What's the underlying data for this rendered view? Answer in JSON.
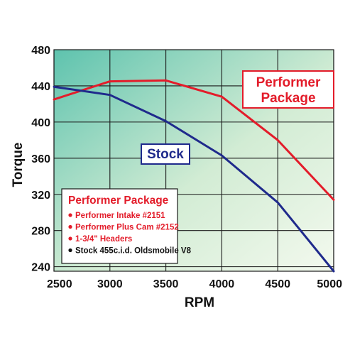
{
  "chart_data": {
    "type": "line",
    "title": "",
    "xlabel": "RPM",
    "ylabel": "Torque",
    "x": [
      2500,
      3000,
      3500,
      4000,
      4500,
      5000
    ],
    "xlim": [
      2500,
      5000
    ],
    "ylim": [
      235,
      480
    ],
    "xticks": [
      2500,
      3000,
      3500,
      4000,
      4500,
      5000
    ],
    "yticks": [
      240,
      280,
      320,
      360,
      400,
      440,
      480
    ],
    "grid": true,
    "series": [
      {
        "name": "Performer Package",
        "color": "#e31c2a",
        "values": [
          425,
          445,
          446,
          428,
          380,
          314
        ]
      },
      {
        "name": "Stock",
        "color": "#1f2a8c",
        "values": [
          439,
          430,
          401,
          363,
          311,
          235
        ]
      }
    ],
    "annotations": {
      "performer_label_line1": "Performer",
      "performer_label_line2": "Package",
      "stock_label": "Stock"
    },
    "legend": {
      "placement": "bottom-left",
      "title": "Performer Package",
      "items": [
        {
          "text": "Performer Intake #2151",
          "color": "#e31c2a"
        },
        {
          "text": "Performer Plus Cam #2152",
          "color": "#e31c2a"
        },
        {
          "text": "1-3/4\" Headers",
          "color": "#e31c2a"
        },
        {
          "text": "Stock 455c.i.d. Oldsmobile V8",
          "color": "#111111"
        }
      ]
    },
    "background_gradient": [
      "#5ec3ae",
      "#d2ecd4",
      "#f3f9ee"
    ],
    "grid_color": "#1a1a1a"
  }
}
